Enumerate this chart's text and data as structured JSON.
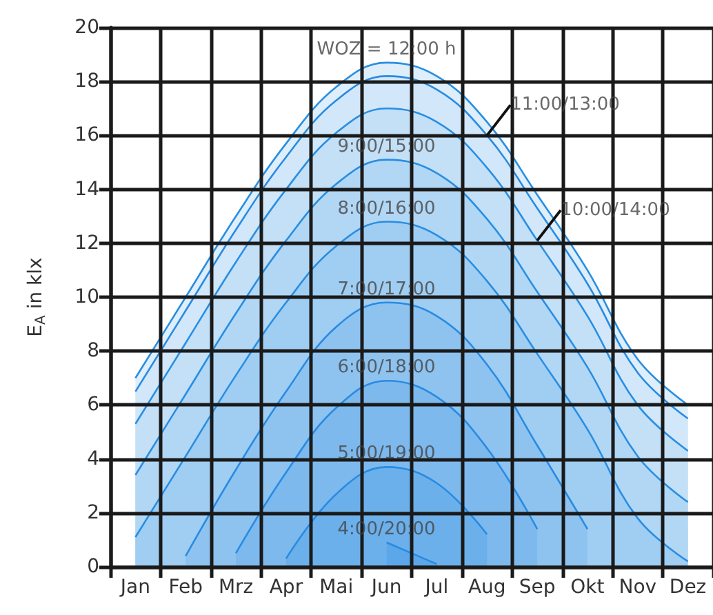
{
  "chart_data": {
    "type": "area",
    "ylabel": "E$_{A}$ in klx",
    "categories": [
      "Jan",
      "Feb",
      "Mrz",
      "Apr",
      "Mai",
      "Jun",
      "Jul",
      "Aug",
      "Sep",
      "Okt",
      "Nov",
      "Dez"
    ],
    "ylim": [
      0,
      20
    ],
    "yticks": [
      0,
      2,
      4,
      6,
      8,
      10,
      12,
      14,
      16,
      18,
      20
    ],
    "grid": true,
    "marker": "none",
    "line_style": "solid",
    "series": [
      {
        "color": "#deeefb",
        "values": [
          7.0,
          10.0,
          13.0,
          15.7,
          17.8,
          18.7,
          18.2,
          16.5,
          13.8,
          11.0,
          7.7,
          6.0
        ]
      },
      {
        "color": "#d2e7f9",
        "values": [
          6.5,
          9.5,
          12.5,
          15.2,
          17.3,
          18.2,
          17.7,
          16.0,
          13.3,
          10.5,
          7.2,
          5.5
        ]
      },
      {
        "color": "#c3e0f7",
        "values": [
          5.3,
          8.3,
          11.3,
          14.0,
          16.1,
          17.0,
          16.5,
          14.8,
          12.1,
          9.3,
          6.0,
          4.3
        ]
      },
      {
        "color": "#b2d7f5",
        "values": [
          3.4,
          6.4,
          9.4,
          12.1,
          14.2,
          15.1,
          14.6,
          12.9,
          10.2,
          7.4,
          4.1,
          2.4
        ]
      },
      {
        "color": "#a0cdf2",
        "values": [
          1.1,
          4.1,
          7.1,
          9.8,
          11.9,
          12.8,
          12.3,
          10.6,
          7.9,
          5.1,
          1.8,
          0.2
        ]
      },
      {
        "color": "#8ec3f0",
        "values": [
          null,
          0.4,
          3.6,
          6.5,
          8.9,
          9.8,
          9.3,
          7.5,
          4.5,
          1.4,
          null,
          null
        ]
      },
      {
        "color": "#7db9ed",
        "values": [
          null,
          null,
          0.5,
          3.5,
          5.9,
          6.9,
          6.3,
          4.4,
          1.4,
          null,
          null,
          null
        ]
      },
      {
        "color": "#6cb0eb",
        "values": [
          null,
          null,
          null,
          0.3,
          2.7,
          3.7,
          3.1,
          1.2,
          null,
          null,
          null,
          null
        ]
      },
      {
        "color": "#5ca7e9",
        "values": [
          null,
          null,
          null,
          null,
          null,
          0.9,
          0.1,
          null,
          null,
          null,
          null,
          null
        ]
      }
    ],
    "annotations": [
      {
        "text": "WOZ = 12:00 h",
        "x": "Jun",
        "y": 18.7
      },
      {
        "text": "11:00/13:00",
        "x": "Aug",
        "y": 16.0
      },
      {
        "text": "10:00/14:00",
        "x": "Sep",
        "y": 12.1
      },
      {
        "text": "9:00/15:00",
        "x": "Jun",
        "y": 15.1
      },
      {
        "text": "8:00/16:00",
        "x": "Jun",
        "y": 12.8
      },
      {
        "text": "7:00/17:00",
        "x": "Jun",
        "y": 9.8
      },
      {
        "text": "6:00/18:00",
        "x": "Jun",
        "y": 6.9
      },
      {
        "text": "5:00/19:00",
        "x": "Jun",
        "y": 3.7
      },
      {
        "text": "4:00/20:00",
        "x": "Jun",
        "y": 0.9
      }
    ]
  }
}
